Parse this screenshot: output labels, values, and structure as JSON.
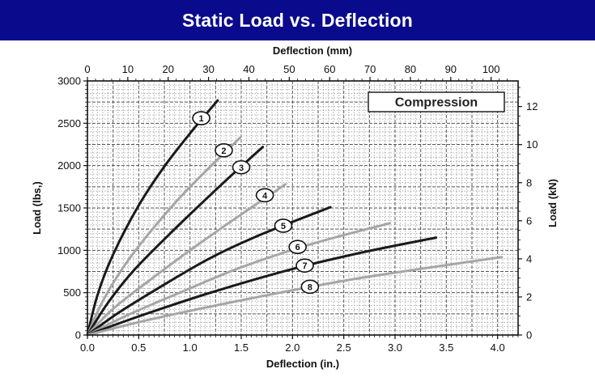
{
  "banner": {
    "title": "Static Load vs. Deflection",
    "color": "#0a0a8c"
  },
  "chart_data": {
    "type": "line",
    "title": "",
    "annotation": "Compression",
    "xlabel": "Deflection (in.)",
    "x2label": "Deflection (mm)",
    "ylabel": "Load (lbs,)",
    "y2label": "Load (kN)",
    "xlim": [
      0,
      4.2
    ],
    "ylim": [
      0,
      3000
    ],
    "x2lim": [
      0,
      106.68
    ],
    "y2lim": [
      0,
      13.345
    ],
    "grid": true,
    "x_ticks": [
      "0.0",
      "0.5",
      "1.0",
      "1.5",
      "2.0",
      "2.5",
      "3.0",
      "3.5",
      "4.0"
    ],
    "x2_ticks": [
      "0",
      "10",
      "20",
      "30",
      "40",
      "50",
      "60",
      "70",
      "80",
      "90",
      "100"
    ],
    "y_ticks": [
      "0",
      "500",
      "1000",
      "1500",
      "2000",
      "2500",
      "3000"
    ],
    "y2_ticks": [
      "0",
      "2",
      "4",
      "6",
      "8",
      "10",
      "12"
    ],
    "colors": {
      "dark": "#1a1a1a",
      "light": "#a6a6a6"
    },
    "series": [
      {
        "name": "1",
        "tone": "dark",
        "x": [
          0,
          0.1,
          0.25,
          0.5,
          0.75,
          1.0,
          1.27
        ],
        "y": [
          0,
          480,
          950,
          1530,
          1990,
          2380,
          2770
        ]
      },
      {
        "name": "2",
        "tone": "light",
        "x": [
          0,
          0.15,
          0.35,
          0.6,
          0.9,
          1.2,
          1.49
        ],
        "y": [
          0,
          400,
          800,
          1200,
          1620,
          1990,
          2330
        ]
      },
      {
        "name": "3",
        "tone": "dark",
        "x": [
          0,
          0.2,
          0.45,
          0.8,
          1.1,
          1.4,
          1.71
        ],
        "y": [
          0,
          380,
          760,
          1190,
          1540,
          1880,
          2220
        ]
      },
      {
        "name": "4",
        "tone": "light",
        "x": [
          0,
          0.25,
          0.6,
          1.0,
          1.4,
          1.93
        ],
        "y": [
          0,
          310,
          640,
          1000,
          1340,
          1780
        ]
      },
      {
        "name": "5",
        "tone": "dark",
        "x": [
          0,
          0.3,
          0.7,
          1.2,
          1.7,
          2.37
        ],
        "y": [
          0,
          260,
          560,
          910,
          1190,
          1510
        ]
      },
      {
        "name": "6",
        "tone": "light",
        "x": [
          0,
          0.4,
          0.9,
          1.5,
          2.2,
          2.95
        ],
        "y": [
          0,
          240,
          500,
          800,
          1080,
          1320
        ]
      },
      {
        "name": "7",
        "tone": "dark",
        "x": [
          0,
          0.5,
          1.2,
          2.0,
          2.7,
          3.4
        ],
        "y": [
          0,
          220,
          500,
          780,
          980,
          1150
        ]
      },
      {
        "name": "8",
        "tone": "light",
        "x": [
          0,
          0.6,
          1.5,
          2.5,
          3.3,
          4.04
        ],
        "y": [
          0,
          180,
          410,
          640,
          790,
          920
        ]
      }
    ],
    "curve_labels": [
      {
        "name": "1",
        "x": 1.11,
        "y": 2560
      },
      {
        "name": "2",
        "x": 1.33,
        "y": 2180
      },
      {
        "name": "3",
        "x": 1.5,
        "y": 1980
      },
      {
        "name": "4",
        "x": 1.73,
        "y": 1650
      },
      {
        "name": "5",
        "x": 1.91,
        "y": 1290
      },
      {
        "name": "6",
        "x": 2.05,
        "y": 1040
      },
      {
        "name": "7",
        "x": 2.12,
        "y": 820
      },
      {
        "name": "8",
        "x": 2.17,
        "y": 570
      }
    ]
  }
}
